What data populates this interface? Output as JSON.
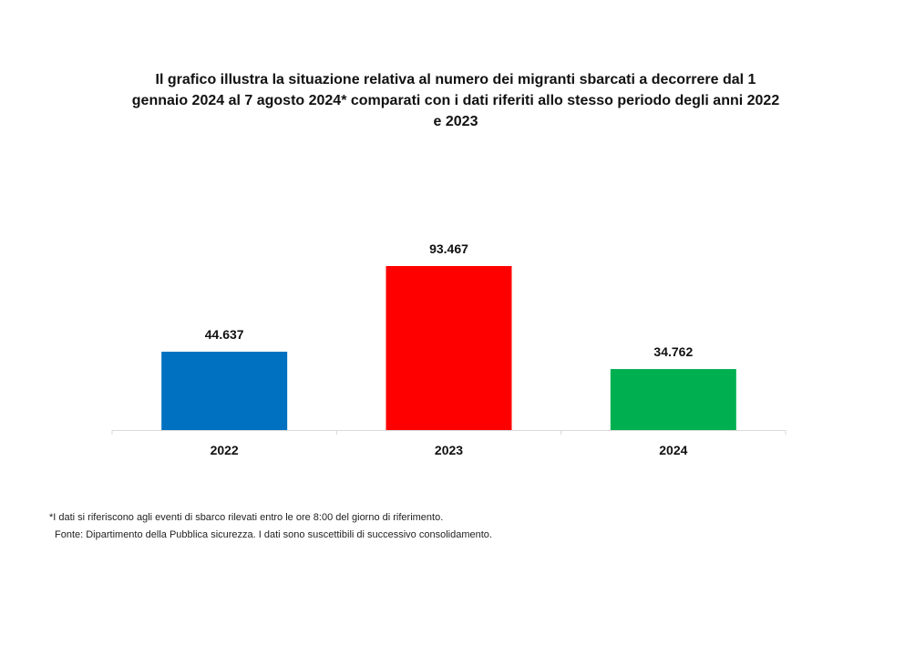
{
  "title": "Il grafico illustra la situazione relativa al numero dei migranti sbarcati a decorrere dal 1 gennaio 2024 al 7 agosto 2024* comparati con i dati riferiti allo stesso periodo degli anni 2022 e 2023",
  "footnote": "*I dati si riferiscono agli eventi di sbarco rilevati entro le ore 8:00 del giorno di riferimento.",
  "source": "Fonte: Dipartimento della Pubblica sicurezza. I dati sono suscettibili di successivo consolidamento.",
  "chart_data": {
    "type": "bar",
    "title": "Il grafico illustra la situazione relativa al numero dei migranti sbarcati a decorrere dal 1 gennaio 2024 al 7 agosto 2024* comparati con i dati riferiti allo stesso periodo degli anni 2022 e 2023",
    "categories": [
      "2022",
      "2023",
      "2024"
    ],
    "values": [
      44637,
      93467,
      34762
    ],
    "data_labels": [
      "44.637",
      "93.467",
      "34.762"
    ],
    "colors": [
      "#0070C0",
      "#FF0000",
      "#00B050"
    ],
    "xlabel": "",
    "ylabel": "",
    "grid": false,
    "legend": "none",
    "axis_color": "#d9d9d9"
  }
}
